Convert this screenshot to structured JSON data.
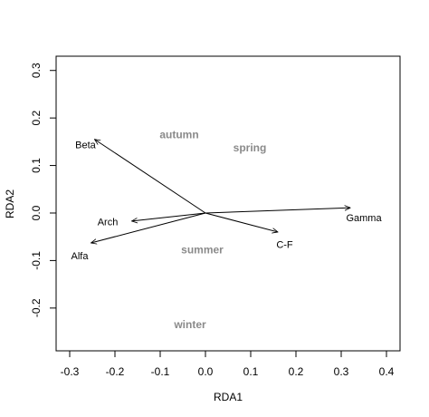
{
  "chart_data": {
    "type": "scatter",
    "title": "",
    "xlabel": "RDA1",
    "ylabel": "RDA2",
    "xlim": [
      -0.33,
      0.43
    ],
    "ylim": [
      -0.29,
      0.33
    ],
    "xticks": [
      -0.3,
      -0.2,
      -0.1,
      0.0,
      0.1,
      0.2,
      0.3,
      0.4
    ],
    "xtick_labels": [
      "-0.3",
      "-0.2",
      "-0.1",
      "0.0",
      "0.1",
      "0.2",
      "0.3",
      "0.4"
    ],
    "yticks": [
      -0.2,
      -0.1,
      0.0,
      0.1,
      0.2,
      0.3
    ],
    "ytick_labels": [
      "-0.2",
      "-0.1",
      "0.0",
      "0.1",
      "0.2",
      "0.3"
    ],
    "grid": false,
    "arrow_origin": [
      0.0,
      0.0
    ],
    "arrows": [
      {
        "name": "Beta",
        "x": -0.245,
        "y": 0.155,
        "label_x": -0.265,
        "label_y": 0.142
      },
      {
        "name": "Arch",
        "x": -0.163,
        "y": -0.017,
        "label_x": -0.216,
        "label_y": -0.02
      },
      {
        "name": "Alfa",
        "x": -0.253,
        "y": -0.063,
        "label_x": -0.278,
        "label_y": -0.092
      },
      {
        "name": "Gamma",
        "x": 0.32,
        "y": 0.011,
        "label_x": 0.35,
        "label_y": -0.012
      },
      {
        "name": "C-F",
        "x": 0.16,
        "y": -0.04,
        "label_x": 0.175,
        "label_y": -0.068
      }
    ],
    "points": [
      {
        "label": "autumn",
        "x": -0.058,
        "y": 0.163
      },
      {
        "label": "spring",
        "x": 0.098,
        "y": 0.136
      },
      {
        "label": "summer",
        "x": -0.007,
        "y": -0.079
      },
      {
        "label": "winter",
        "x": -0.034,
        "y": -0.236
      }
    ]
  }
}
